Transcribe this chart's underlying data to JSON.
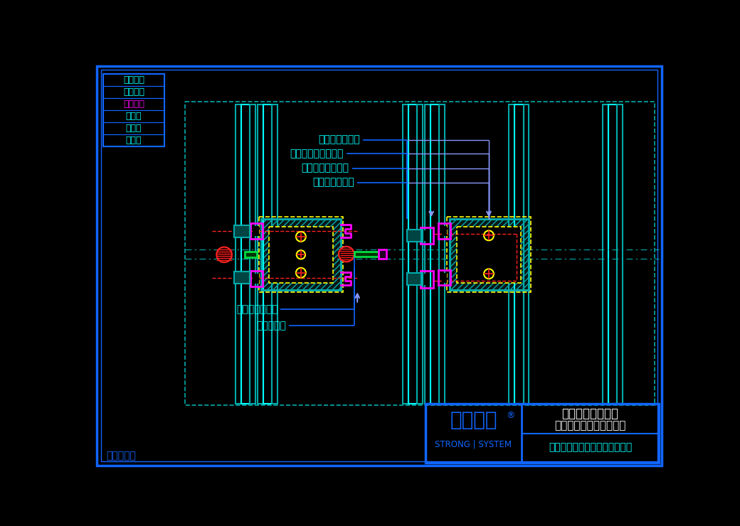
{
  "bg": "#000000",
  "blue": "#1166ff",
  "cyan": "#00ffff",
  "teal": "#00aaaa",
  "magenta": "#ff00ff",
  "yellow": "#ffff00",
  "red": "#ff2222",
  "green": "#00dd44",
  "purple": "#8899ff",
  "white": "#ffffff",
  "dk_teal": "#004444",
  "sidebar_labels": [
    "安全防火",
    "环保节能",
    "超级防腐",
    "大跨度",
    "大通透",
    "更纤细"
  ],
  "sidebar_colors": [
    "#00ffff",
    "#00ffff",
    "#ff00ff",
    "#00ffff",
    "#00ffff",
    "#00ffff"
  ],
  "logo_main": "西创系统",
  "logo_reg": "®",
  "logo_sub": "STRONG | SYSTEM",
  "title_line1": "矩形精制钢全隐框",
  "title_line2": "（有附框）玻璃幕墙节点",
  "company": "西创金属科技（江苏）有限公司",
  "patent": "专利产品！",
  "ann1": "凹型精制钢横梁",
  "ann2": "定制横梁插芯连接件",
  "ann3": "立柱横梁连接托码",
  "ann4": "铝合金玻璃附框",
  "ann5": "不锈钢机制螺栓",
  "ann6": "铝合金压码"
}
